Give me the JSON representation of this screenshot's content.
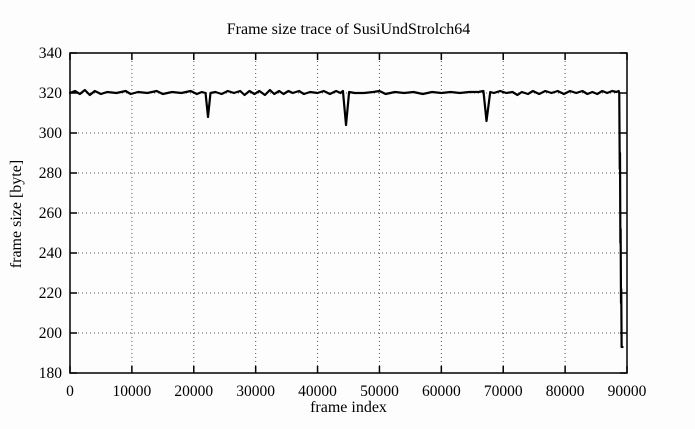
{
  "chart_data": {
    "type": "line",
    "title": "Frame size trace of SusiUndStrolch64",
    "xlabel": "frame index",
    "ylabel": "frame size [byte]",
    "xlim": [
      0,
      90000
    ],
    "ylim": [
      180,
      340
    ],
    "xticks": [
      0,
      10000,
      20000,
      30000,
      40000,
      50000,
      60000,
      70000,
      80000,
      90000
    ],
    "xtick_labels": [
      "0",
      "10000",
      "20000",
      "30000",
      "40000",
      "50000",
      "60000",
      "70000",
      "80000",
      "90000"
    ],
    "yticks": [
      180,
      200,
      220,
      240,
      260,
      280,
      300,
      320,
      340
    ],
    "ytick_labels": [
      "180",
      "200",
      "220",
      "240",
      "260",
      "280",
      "300",
      "320",
      "340"
    ],
    "grid": true,
    "grid_style": "dotted",
    "legend": false,
    "line_color": "#000000",
    "grid_color": "#555555",
    "frame_color": "#000000",
    "background_color": "#fdfdfd",
    "series": [
      {
        "name": "frame size trace",
        "points": [
          [
            0,
            320
          ],
          [
            800,
            321
          ],
          [
            1600,
            319.5
          ],
          [
            2400,
            321.5
          ],
          [
            3200,
            319
          ],
          [
            4000,
            321
          ],
          [
            5000,
            319.5
          ],
          [
            6000,
            320.5
          ],
          [
            7500,
            320
          ],
          [
            9000,
            321
          ],
          [
            9800,
            319.5
          ],
          [
            11000,
            320.5
          ],
          [
            12500,
            320
          ],
          [
            14000,
            321
          ],
          [
            15000,
            319.5
          ],
          [
            16500,
            320.5
          ],
          [
            18000,
            320
          ],
          [
            19500,
            321
          ],
          [
            20500,
            319.5
          ],
          [
            21300,
            320.5
          ],
          [
            21900,
            320
          ],
          [
            22300,
            308
          ],
          [
            22700,
            320
          ],
          [
            23500,
            320.5
          ],
          [
            24500,
            319.5
          ],
          [
            25500,
            321
          ],
          [
            26500,
            320
          ],
          [
            27500,
            321
          ],
          [
            28200,
            319
          ],
          [
            29000,
            321
          ],
          [
            29800,
            319.5
          ],
          [
            30600,
            321
          ],
          [
            31500,
            319
          ],
          [
            32300,
            321.5
          ],
          [
            33000,
            319.5
          ],
          [
            33800,
            321
          ],
          [
            34500,
            319.5
          ],
          [
            35300,
            321
          ],
          [
            36000,
            320
          ],
          [
            37000,
            321
          ],
          [
            37800,
            319.5
          ],
          [
            38800,
            320.5
          ],
          [
            40000,
            320
          ],
          [
            41000,
            321
          ],
          [
            42000,
            319.5
          ],
          [
            43000,
            321
          ],
          [
            43700,
            320
          ],
          [
            44100,
            321
          ],
          [
            44600,
            304
          ],
          [
            45100,
            320.5
          ],
          [
            46000,
            320
          ],
          [
            47500,
            320
          ],
          [
            49000,
            320.5
          ],
          [
            50000,
            321
          ],
          [
            51000,
            319.5
          ],
          [
            52500,
            320.5
          ],
          [
            54000,
            320
          ],
          [
            55500,
            320.5
          ],
          [
            57000,
            319.5
          ],
          [
            58500,
            320.5
          ],
          [
            60000,
            320
          ],
          [
            61500,
            320.5
          ],
          [
            63000,
            320
          ],
          [
            64500,
            320.5
          ],
          [
            66000,
            320.5
          ],
          [
            66800,
            321
          ],
          [
            67300,
            306
          ],
          [
            67900,
            320.5
          ],
          [
            68500,
            320
          ],
          [
            69500,
            321
          ],
          [
            70500,
            320
          ],
          [
            71500,
            320.5
          ],
          [
            72300,
            319
          ],
          [
            73000,
            320.5
          ],
          [
            74000,
            319.5
          ],
          [
            74800,
            321
          ],
          [
            75800,
            319.5
          ],
          [
            76800,
            321
          ],
          [
            77800,
            320
          ],
          [
            78800,
            321
          ],
          [
            79800,
            319.5
          ],
          [
            80800,
            321
          ],
          [
            81800,
            320
          ],
          [
            82800,
            321
          ],
          [
            83600,
            319.5
          ],
          [
            84400,
            320.5
          ],
          [
            85200,
            319.5
          ],
          [
            86000,
            321
          ],
          [
            86800,
            320
          ],
          [
            87600,
            321
          ],
          [
            88300,
            320.5
          ],
          [
            88650,
            321
          ],
          [
            88750,
            320
          ],
          [
            88830,
            282
          ],
          [
            88870,
            290
          ],
          [
            88930,
            245
          ],
          [
            88970,
            252
          ],
          [
            89030,
            215
          ],
          [
            89070,
            222
          ],
          [
            89130,
            193
          ],
          [
            89280,
            193
          ]
        ]
      }
    ]
  }
}
